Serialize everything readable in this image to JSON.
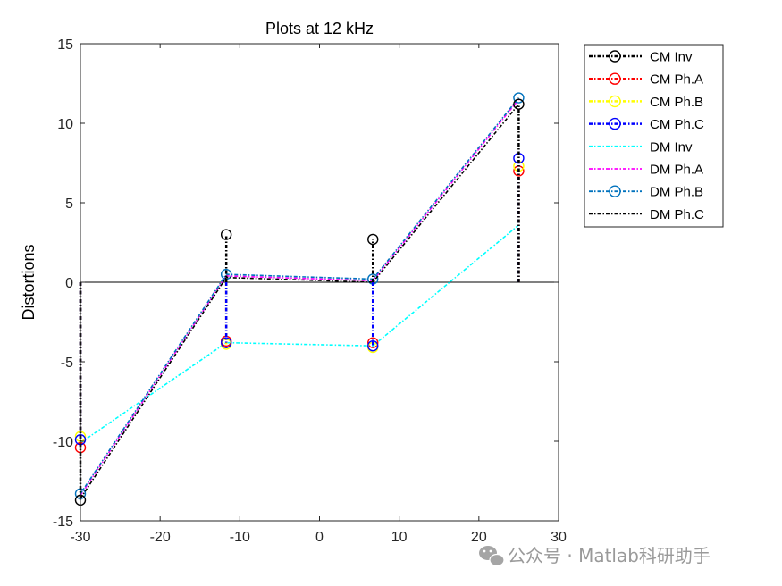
{
  "watermark": {
    "text": "公众号 · Matlab科研助手"
  },
  "chart_data": {
    "type": "line",
    "title": "Plots at 12 kHz",
    "xlabel": "",
    "ylabel": "Distortions",
    "xlim": [
      -30,
      30
    ],
    "ylim": [
      -15,
      15
    ],
    "xticks": [
      -30,
      -20,
      -10,
      0,
      10,
      20,
      30
    ],
    "yticks": [
      -15,
      -10,
      -5,
      0,
      5,
      10,
      15
    ],
    "xtick_labels": [
      "-30",
      "-20",
      "-10",
      "0",
      "10",
      "20",
      "30"
    ],
    "ytick_labels": [
      "-15",
      "-10",
      "-5",
      "0",
      "5",
      "10",
      "15"
    ],
    "grid": false,
    "zero_line": true,
    "legend_position": "outside-right-top",
    "series": [
      {
        "name": "CM Inv",
        "kind": "stem",
        "color": "#000000",
        "marker": "circle",
        "x": [
          -30,
          -11.7,
          6.7,
          25
        ],
        "y": [
          -13.7,
          3.0,
          2.7,
          11.2
        ]
      },
      {
        "name": "CM Ph.A",
        "kind": "stem",
        "color": "#ff0000",
        "marker": "circle",
        "x": [
          -30,
          -11.7,
          6.7,
          25
        ],
        "y": [
          -10.4,
          -3.7,
          -3.8,
          7.0
        ]
      },
      {
        "name": "CM Ph.B",
        "kind": "stem",
        "color": "#ffff00",
        "marker": "circle",
        "x": [
          -30,
          -11.7,
          6.7,
          25
        ],
        "y": [
          -9.7,
          -3.9,
          -4.1,
          7.3
        ]
      },
      {
        "name": "CM Ph.C",
        "kind": "stem",
        "color": "#0000ff",
        "marker": "circle",
        "x": [
          -30,
          -11.7,
          6.7,
          25
        ],
        "y": [
          -9.9,
          -3.8,
          -4.0,
          7.8
        ]
      },
      {
        "name": "DM Inv",
        "kind": "line",
        "color": "#00ffff",
        "marker": "none",
        "x": [
          -30,
          -11.7,
          6.7,
          25
        ],
        "y": [
          -10.1,
          -3.8,
          -4.0,
          3.6
        ]
      },
      {
        "name": "DM Ph.A",
        "kind": "line",
        "color": "#ff00ff",
        "marker": "none",
        "x": [
          -30,
          -11.7,
          6.7,
          25
        ],
        "y": [
          -13.4,
          0.4,
          0.1,
          11.5
        ]
      },
      {
        "name": "DM Ph.B",
        "kind": "line",
        "color": "#0072bd",
        "marker": "circle",
        "x": [
          -30,
          -11.7,
          6.7,
          25
        ],
        "y": [
          -13.3,
          0.5,
          0.2,
          11.6
        ]
      },
      {
        "name": "DM Ph.C",
        "kind": "line",
        "color": "#000000",
        "marker": "none",
        "x": [
          -30,
          -11.7,
          6.7,
          25
        ],
        "y": [
          -13.6,
          0.3,
          0.0,
          11.2
        ]
      }
    ]
  }
}
